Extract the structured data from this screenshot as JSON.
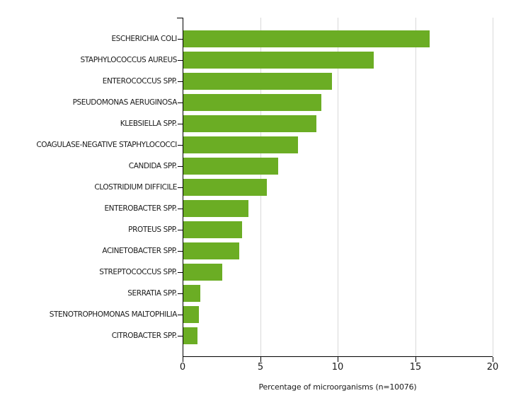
{
  "chart_data": {
    "type": "bar",
    "orientation": "horizontal",
    "title": "",
    "categories": [
      "ESCHERICHIA COLI",
      "STAPHYLOCOCCUS AUREUS",
      "ENTEROCOCCUS SPP.",
      "PSEUDOMONAS AERUGINOSA",
      "KLEBSIELLA SPP.",
      "COAGULASE-NEGATIVE STAPHYLOCOCCI",
      "CANDIDA SPP.",
      "CLOSTRIDIUM DIFFICILE",
      "ENTEROBACTER SPP.",
      "PROTEUS SPP.",
      "ACINETOBACTER SPP.",
      "STREPTOCOCCUS SPP.",
      "SERRATIA SPP.",
      "STENOTROPHOMONAS MALTOPHILIA",
      "CITROBACTER SPP."
    ],
    "values": [
      15.9,
      12.3,
      9.6,
      8.9,
      8.6,
      7.4,
      6.1,
      5.4,
      4.2,
      3.8,
      3.6,
      2.5,
      1.1,
      1.0,
      0.9
    ],
    "xlabel": "Percentage of microorganisms (n=10076)",
    "ylabel": "",
    "xlim": [
      0,
      20
    ],
    "x_ticks": [
      0,
      5,
      10,
      15,
      20
    ],
    "grid": "vertical gridlines at x ticks, none at 0",
    "legend": "none",
    "colors": {
      "bar": "#6bad24",
      "gridline": "#d9d9d9",
      "axis": "#000000",
      "text": "#1a1a1a",
      "background": "#ffffff"
    }
  }
}
